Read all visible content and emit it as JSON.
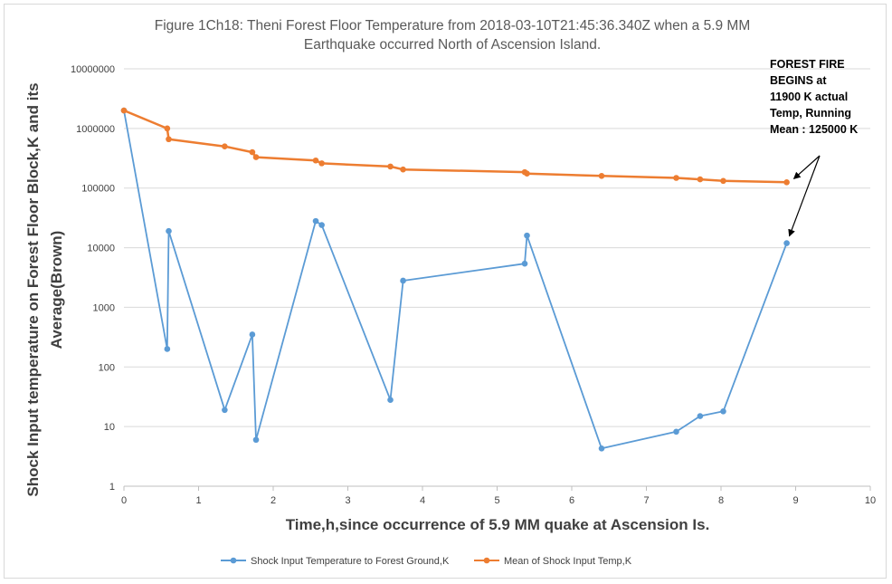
{
  "chart_data": {
    "type": "line",
    "title": "Figure 1Ch18: Theni Forest Floor Temperature from 2018-03-10T21:45:36.340Z when a 5.9 MM",
    "subtitle": "Earthquake occurred North of Ascension Island.",
    "xlabel": "Time,h,since  occurrence of 5.9 MM quake at Ascension Is.",
    "ylabel_line1": "Shock Input temperature on Forest Floor Block,K and its",
    "ylabel_line2": "Average(Brown)",
    "xlim": [
      0,
      10
    ],
    "ylim": [
      1,
      10000000
    ],
    "yscale": "log",
    "x_ticks": [
      "0",
      "1",
      "2",
      "3",
      "4",
      "5",
      "6",
      "7",
      "8",
      "9",
      "10"
    ],
    "y_ticks": [
      "1",
      "10",
      "100",
      "1000",
      "10000",
      "100000",
      "1000000",
      "10000000"
    ],
    "grid": "horizontal",
    "legend_position": "bottom",
    "series": [
      {
        "name": "Shock Input Temperature to Forest Ground,K",
        "color": "#5b9bd5",
        "points": [
          [
            0,
            2000000
          ],
          [
            0.58,
            200
          ],
          [
            0.6,
            19000
          ],
          [
            1.35,
            19
          ],
          [
            1.72,
            350
          ],
          [
            1.77,
            6
          ],
          [
            2.57,
            28000
          ],
          [
            2.65,
            24000
          ],
          [
            3.57,
            28
          ],
          [
            3.74,
            2800
          ],
          [
            5.37,
            5400
          ],
          [
            5.4,
            16000
          ],
          [
            6.4,
            4.3
          ],
          [
            7.4,
            8.2
          ],
          [
            7.72,
            15
          ],
          [
            8.03,
            18
          ],
          [
            8.88,
            11900
          ]
        ]
      },
      {
        "name": "Mean of Shock Input Temp,K",
        "color": "#ed7d31",
        "points": [
          [
            0,
            2000000
          ],
          [
            0.58,
            1000000
          ],
          [
            0.6,
            660000
          ],
          [
            1.35,
            500000
          ],
          [
            1.72,
            400000
          ],
          [
            1.77,
            330000
          ],
          [
            2.57,
            290000
          ],
          [
            2.65,
            260000
          ],
          [
            3.57,
            230000
          ],
          [
            3.74,
            205000
          ],
          [
            5.37,
            185000
          ],
          [
            5.4,
            175000
          ],
          [
            6.4,
            160000
          ],
          [
            7.4,
            148000
          ],
          [
            7.72,
            140000
          ],
          [
            8.03,
            132000
          ],
          [
            8.88,
            125000
          ]
        ]
      }
    ],
    "annotation": [
      "FOREST FIRE",
      "BEGINS at",
      "11900 K actual",
      "Temp, Running",
      "Mean : 125000 K"
    ]
  }
}
